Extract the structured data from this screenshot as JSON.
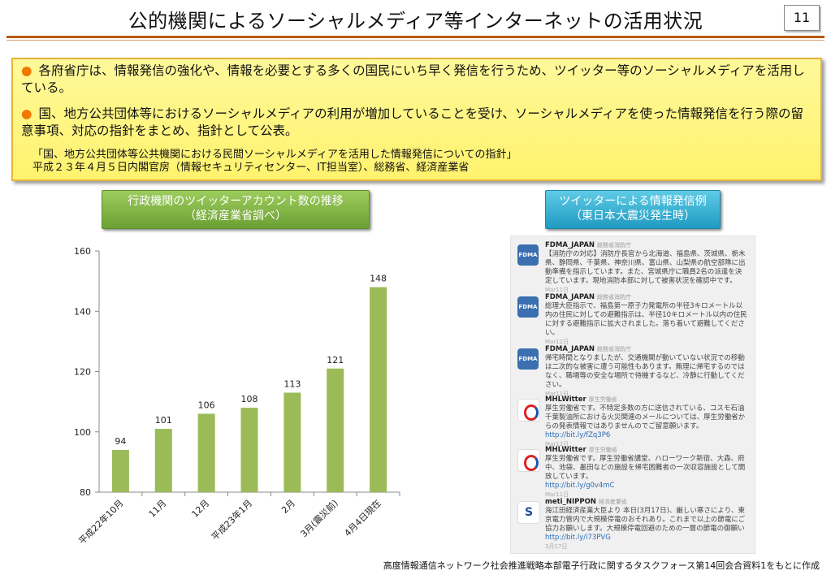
{
  "title": "公的機関によるソーシャルメディア等インターネットの活用状況",
  "page_number": "11",
  "bullets": [
    "各府省庁は、情報発信の強化や、情報を必要とする多くの国民にいち早く発信を行うため、ツイッター等のソーシャルメディアを活用している。",
    "国、地方公共団体等におけるソーシャルメディアの利用が増加していることを受け、ソーシャルメディアを使った情報発信を行う際の留意事項、対応の指針をまとめ、指針として公表。"
  ],
  "bullet_marker": "●",
  "note_line1": "「国、地方公共団体等公共機関における民間ソーシャルメディアを活用した情報発信についての指針」",
  "note_line2": "平成２３年４月５日内閣官房（情報セキュリティセンター、IT担当室）、総務省、経済産業省",
  "chart_box": {
    "line1": "行政機関のツイッターアカウント数の推移",
    "line2": "（経済産業省調べ）"
  },
  "tweet_box": {
    "line1": "ツイッターによる情報発信例",
    "line2": "（東日本大震災発生時）"
  },
  "chart_data": {
    "type": "bar",
    "categories": [
      "平成22年10月",
      "11月",
      "12月",
      "平成23年1月",
      "2月",
      "3月(震災前)",
      "4月4日現在"
    ],
    "values": [
      94,
      101,
      106,
      108,
      113,
      121,
      148
    ],
    "title": "",
    "xlabel": "",
    "ylabel": "",
    "ylim": [
      80,
      160
    ],
    "yticks": [
      80,
      100,
      120,
      140,
      160
    ],
    "bar_color": "#9bbb59",
    "grid": false
  },
  "tweets": [
    {
      "user": "FDMA_JAPAN",
      "sub": "総務省消防庁",
      "text": "【消防庁の対応】消防庁長官から北海道、福島県、茨城県、栃木県、静岡県、千葉県、神奈川県、富山県、山梨県の航空部隊に出動準備を指示しています。また、宮城県庁に職員2名の派遣を決定しています。現地消防本部に対して被害状況を確認中です。",
      "link": "",
      "date": "Mar11日",
      "icon": "fdma-icon",
      "icon_text": "FDMA"
    },
    {
      "user": "FDMA_JAPAN",
      "sub": "総務省消防庁",
      "text": "総理大臣指示で、福島第一原子力発電所の半径3キロメートル以内の住民に対しての避難指示は、半径10キロメートル以内の住民に対する避難指示に拡大されました。落ち着いて避難してください。",
      "link": "",
      "date": "Mar12日",
      "icon": "fdma-icon",
      "icon_text": "FDMA"
    },
    {
      "user": "FDMA_JAPAN",
      "sub": "総務省消防庁",
      "text": "帰宅時間となりましたが、交通機関が動いていない状況での移動は二次的な被害に遭う可能性もあります。無理に帰宅するのではなく、職場等の安全な場所で待機するなど、冷静に行動してください。",
      "link": "",
      "date": "Mar11日",
      "icon": "fdma-icon",
      "icon_text": "FDMA"
    },
    {
      "user": "MHLWitter",
      "sub": "厚生労働省",
      "text": "厚生労働省です。不特定多数の方に送信されている、コスモ石油千葉製油所における火災関連のメールについては、厚生労働省からの発表情報ではありませんのでご留意願います。",
      "link": "http://bit.ly/fZq3P6",
      "date": "Mar12日",
      "icon": "mhlw-icon",
      "icon_text": ""
    },
    {
      "user": "MHLWitter",
      "sub": "厚生労働省",
      "text": "厚生労働省です。厚生労働省講堂、ハローワーク新宿、大森、府中、池袋、墨田などの施設を帰宅困難者の一次収容施設として開放しています。",
      "link": "http://bit.ly/g0v4mC",
      "date": "Mar11日",
      "icon": "mhlw-icon",
      "icon_text": ""
    },
    {
      "user": "meti_NIPPON",
      "sub": "経済産業省",
      "text": "海江田経済産業大臣より 本日(3月17日)、厳しい寒さにより、東京電力管内で大規模停電のおそれあり。これまで以上の節電にご協力お願いします。大規模停電回避のための一層の節電の御願い",
      "link": "http://bit.ly/i73PVG",
      "date": "3月17日",
      "icon": "meti-icon",
      "icon_text": "S"
    }
  ],
  "source": "高度情報通信ネットワーク社会推進戦略本部電子行政に関するタスクフォース第14回会合資料1をもとに作成"
}
